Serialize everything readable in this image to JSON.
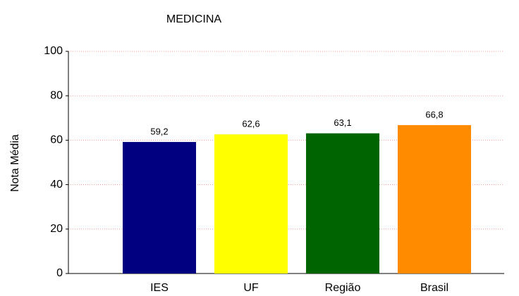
{
  "chart_data": {
    "type": "bar",
    "title": "MEDICINA",
    "y_label": "Nota Média",
    "categories": [
      "IES",
      "UF",
      "Região",
      "Brasil"
    ],
    "values": [
      59.2,
      62.6,
      63.1,
      66.8
    ],
    "value_labels": [
      "59,2",
      "62,6",
      "63,1",
      "66,8"
    ],
    "colors": [
      "#000080",
      "#ffff00",
      "#006400",
      "#ff8c00"
    ],
    "ylim": [
      0,
      100
    ],
    "yticks": [
      0,
      20,
      40,
      60,
      80,
      100
    ],
    "grid": true
  }
}
